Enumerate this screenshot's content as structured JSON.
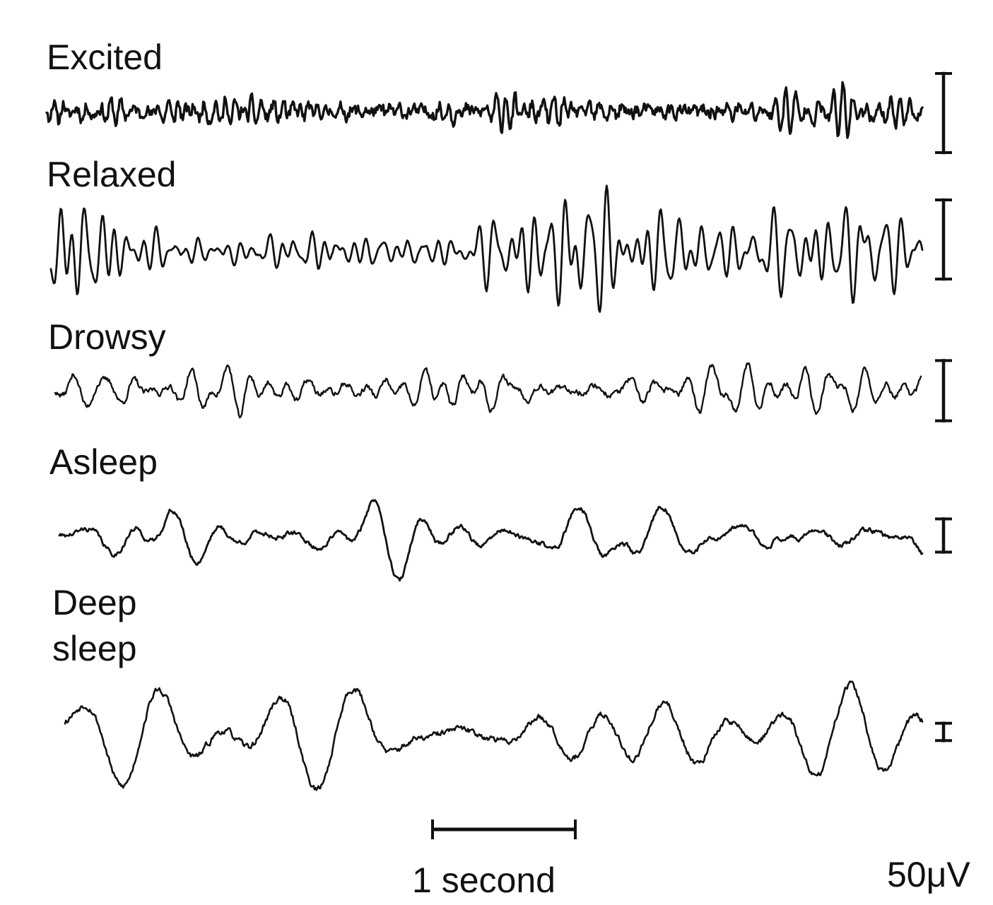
{
  "figure": {
    "ink_color": "#111111",
    "background_color": "#ffffff",
    "traces": [
      {
        "label_lines": [
          "Excited"
        ],
        "waveform": "fast low-amplitude irregular activity",
        "amplitude": 0.32,
        "dominant_hz": 20,
        "noise": 0.9,
        "jitter": 0.55,
        "seed": 11
      },
      {
        "label_lines": [
          "Relaxed"
        ],
        "waveform": "regular rhythmic oscillation",
        "amplitude": 1.0,
        "dominant_hz": 10,
        "noise": 0.12,
        "jitter": 0.2,
        "seed": 23
      },
      {
        "label_lines": [
          "Drowsy"
        ],
        "waveform": "mixed slower waves",
        "amplitude": 0.65,
        "dominant_hz": 6,
        "noise": 0.3,
        "jitter": 0.35,
        "seed": 37
      },
      {
        "label_lines": [
          "Asleep"
        ],
        "waveform": "slow waves with bursts",
        "amplitude": 0.6,
        "dominant_hz": 2.5,
        "noise": 0.35,
        "jitter": 0.25,
        "seed": 41
      },
      {
        "label_lines": [
          "Deep",
          "sleep"
        ],
        "waveform": "large slow waves",
        "amplitude": 1.5,
        "dominant_hz": 2,
        "noise": 0.15,
        "jitter": 0.3,
        "seed": 53
      }
    ],
    "voltage_scale_bars_ratio": [
      1.0,
      1.0,
      0.76,
      0.42,
      0.22
    ],
    "time_scale": {
      "label": "1 second"
    },
    "voltage_scale": {
      "label": "50μV"
    }
  }
}
